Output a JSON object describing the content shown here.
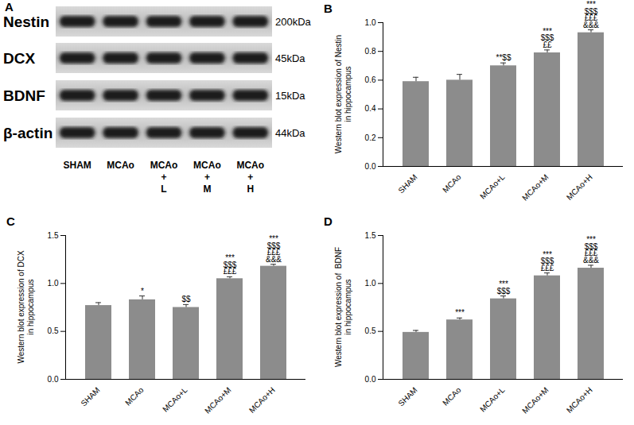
{
  "panel_A": {
    "label": "A",
    "rows": [
      {
        "protein": "Nestin",
        "size": "200kDa"
      },
      {
        "protein": "DCX",
        "size": "45kDa"
      },
      {
        "protein": "BDNF",
        "size": "15kDa"
      },
      {
        "protein": "β-actin",
        "size": "44kDa"
      }
    ],
    "lanes": [
      [
        "SHAM"
      ],
      [
        "MCAo"
      ],
      [
        "MCAo",
        "+",
        "L"
      ],
      [
        "MCAo",
        "+",
        "M"
      ],
      [
        "MCAo",
        "+",
        "H"
      ]
    ]
  },
  "chart_data": [
    {
      "type": "bar",
      "title": "B",
      "y_label": "Western blot expression of Nestin\nin hippocampus",
      "categories": [
        "SHAM",
        "MCAo",
        "MCAo+L",
        "MCAo+M",
        "MCAo+H"
      ],
      "values": [
        0.59,
        0.6,
        0.7,
        0.79,
        0.93
      ],
      "errors": [
        0.03,
        0.04,
        0.02,
        0.02,
        0.02
      ],
      "annotations": [
        [],
        [],
        [
          "**$$"
        ],
        [
          "***",
          "$$$",
          "££"
        ],
        [
          "***",
          "$$$",
          "£££",
          "&&&"
        ]
      ],
      "color": "#8c8c8c",
      "ylim": [
        0,
        1.0
      ],
      "yticks": [
        {
          "value": 0,
          "label": "0.0"
        },
        {
          "value": 0.2,
          "label": "0.2"
        },
        {
          "value": 0.4,
          "label": "0.4"
        },
        {
          "value": 0.6,
          "label": "0.6"
        },
        {
          "value": 0.8,
          "label": "0.8"
        },
        {
          "value": 1.0,
          "label": "1.0"
        }
      ]
    },
    {
      "type": "bar",
      "title": "C",
      "y_label": "Western blot expression of DCX\nin hippocampus",
      "categories": [
        "SHAM",
        "MCAo",
        "MCAo+L",
        "MCAo+M",
        "MCAo+H"
      ],
      "values": [
        0.77,
        0.83,
        0.75,
        1.05,
        1.18
      ],
      "errors": [
        0.03,
        0.04,
        0.03,
        0.02,
        0.02
      ],
      "annotations": [
        [],
        [
          "*"
        ],
        [
          "$$"
        ],
        [
          "***",
          "$$$",
          "£££"
        ],
        [
          "***",
          "$$$",
          "£££",
          "&&&"
        ]
      ],
      "color": "#8c8c8c",
      "ylim": [
        0,
        1.5
      ],
      "yticks": [
        {
          "value": 0,
          "label": "0.0"
        },
        {
          "value": 0.5,
          "label": "0.5"
        },
        {
          "value": 1.0,
          "label": "1.0"
        },
        {
          "value": 1.5,
          "label": "1.5"
        }
      ]
    },
    {
      "type": "bar",
      "title": "D",
      "y_label": "Western blot expression of  BDNF\nin hippocampus",
      "categories": [
        "SHAM",
        "MCAo",
        "MCAo+L",
        "MCAo+M",
        "MCAo+H"
      ],
      "values": [
        0.49,
        0.62,
        0.84,
        1.08,
        1.16
      ],
      "errors": [
        0.02,
        0.02,
        0.03,
        0.03,
        0.03
      ],
      "annotations": [
        [],
        [
          "***"
        ],
        [
          "***",
          "$$$"
        ],
        [
          "***",
          "$$$",
          "£££"
        ],
        [
          "***",
          "$$$",
          "£££",
          "&&&"
        ]
      ],
      "color": "#8c8c8c",
      "ylim": [
        0,
        1.5
      ],
      "yticks": [
        {
          "value": 0,
          "label": "0.0"
        },
        {
          "value": 0.5,
          "label": "0.5"
        },
        {
          "value": 1.0,
          "label": "1.0"
        },
        {
          "value": 1.5,
          "label": "1.5"
        }
      ]
    }
  ]
}
